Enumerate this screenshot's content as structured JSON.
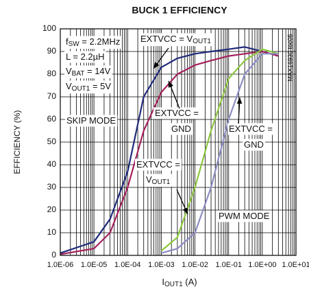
{
  "chart_data": {
    "type": "line",
    "title": "BUCK 1 EFFICIENCY",
    "xlabel": [
      "I",
      "OUT1",
      " (A)"
    ],
    "ylabel": "EFFICIENCY (%)",
    "side_note": "MAX16930 toc05",
    "xscale": "log",
    "grid": true,
    "x": [
      1e-06,
      1e-05,
      3e-05,
      0.0001,
      0.0003,
      0.001,
      0.003,
      0.01,
      0.03,
      0.1,
      0.3,
      1,
      3
    ],
    "series": [
      {
        "name": "EXTVCC = VOUT1, SKIP MODE",
        "color": "#1f2a7a",
        "values": [
          1,
          6,
          16,
          37,
          70,
          83,
          87,
          89,
          90,
          91,
          92,
          90,
          88
        ]
      },
      {
        "name": "EXTVCC = GND, SKIP MODE",
        "color": "#a3205c",
        "values": [
          0.5,
          3,
          10,
          30,
          55,
          72,
          80,
          84,
          86,
          88,
          89,
          90,
          88
        ]
      },
      {
        "name": "EXTVCC = VOUT1, PWM MODE",
        "color": "#8dc63f",
        "values": [
          null,
          null,
          null,
          null,
          null,
          2,
          8,
          30,
          55,
          78,
          86,
          91,
          89
        ]
      },
      {
        "name": "EXTVCC = GND, PWM MODE",
        "color": "#8c8cc4",
        "values": [
          null,
          null,
          null,
          null,
          null,
          1,
          3,
          10,
          30,
          60,
          80,
          89,
          89
        ]
      }
    ],
    "xlim": [
      1e-06,
      10
    ],
    "ylim": [
      0,
      100
    ],
    "xticks": [
      {
        "value": 1e-06,
        "label": "1.0E-06"
      },
      {
        "value": 1e-05,
        "label": "1.0E-05"
      },
      {
        "value": 0.0001,
        "label": "1.0E-04"
      },
      {
        "value": 0.001,
        "label": "1.0E-03"
      },
      {
        "value": 0.01,
        "label": "1.0E-02"
      },
      {
        "value": 0.1,
        "label": "1.0E-01"
      },
      {
        "value": 1,
        "label": "1.0E+00"
      },
      {
        "value": 10,
        "label": "1.0E+01"
      }
    ],
    "yticks": [
      0,
      10,
      20,
      30,
      40,
      50,
      60,
      70,
      80,
      90,
      100
    ],
    "annotations": [
      [
        "f",
        "SW",
        " = 2.2MHz"
      ],
      [
        "L = 2.2µH"
      ],
      [
        "V",
        "BAT",
        " = 14V"
      ],
      [
        "V",
        "OUT1",
        " = 5V"
      ],
      [
        "EXTVCC = V",
        "OUT1"
      ],
      [
        "SKIP MODE"
      ],
      [
        "EXTVCC ="
      ],
      [
        "GND"
      ],
      [
        "EXTVCC ="
      ],
      [
        "GND"
      ],
      [
        "EXTVCC ="
      ],
      [
        "V",
        "OUT1"
      ],
      [
        "PWM MODE"
      ]
    ]
  }
}
